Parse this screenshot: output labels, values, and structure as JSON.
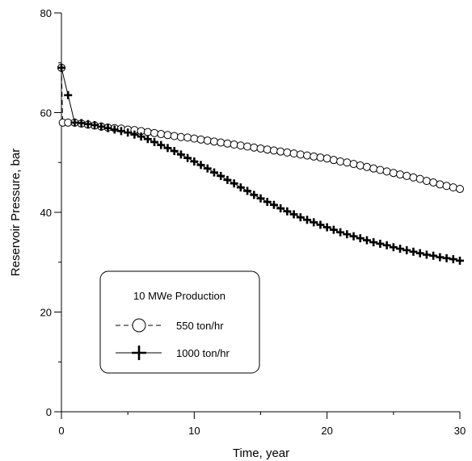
{
  "chart_data": {
    "type": "line",
    "title": "",
    "xlabel": "Time, year",
    "ylabel": "Reservoir Pressure, bar",
    "xlim": [
      0,
      30
    ],
    "ylim": [
      0,
      80
    ],
    "x_ticks": [
      "0",
      "10",
      "20",
      "30"
    ],
    "y_ticks": [
      "0",
      "20",
      "40",
      "60",
      "80"
    ],
    "grid": false,
    "legend": {
      "title": "10 MWe Production",
      "placement": "lower-left",
      "entries": [
        "550 ton/hr",
        "1000 ton/hr"
      ]
    },
    "series": [
      {
        "name": "550 ton/hr",
        "marker": "open-circle",
        "line_style": "dashed",
        "color": "#000000",
        "x": [
          0,
          0.1,
          0.5,
          1,
          1.5,
          2,
          2.5,
          3,
          3.5,
          4,
          4.5,
          5,
          5.5,
          6,
          6.5,
          7,
          7.5,
          8,
          8.5,
          9,
          9.5,
          10,
          10.5,
          11,
          11.5,
          12,
          12.5,
          13,
          13.5,
          14,
          14.5,
          15,
          15.5,
          16,
          16.5,
          17,
          17.5,
          18,
          18.5,
          19,
          19.5,
          20,
          20.5,
          21,
          21.5,
          22,
          22.5,
          23,
          23.5,
          24,
          24.5,
          25,
          25.5,
          26,
          26.5,
          27,
          27.5,
          28,
          28.5,
          29,
          29.5,
          30
        ],
        "y": [
          69.0,
          58.0,
          58.0,
          58.0,
          57.8,
          57.6,
          57.4,
          57.2,
          57.0,
          56.9,
          56.8,
          56.6,
          56.5,
          56.3,
          56.1,
          55.9,
          55.7,
          55.5,
          55.3,
          55.1,
          55.0,
          54.8,
          54.6,
          54.4,
          54.2,
          54.0,
          53.8,
          53.6,
          53.4,
          53.2,
          53.0,
          52.8,
          52.6,
          52.4,
          52.2,
          52.0,
          51.8,
          51.6,
          51.4,
          51.2,
          51.0,
          50.8,
          50.5,
          50.2,
          50.0,
          49.7,
          49.4,
          49.1,
          48.8,
          48.5,
          48.2,
          47.9,
          47.6,
          47.3,
          47.0,
          46.7,
          46.3,
          46.0,
          45.6,
          45.3,
          45.0,
          44.7
        ]
      },
      {
        "name": "1000 ton/hr",
        "marker": "plus",
        "line_style": "solid",
        "color": "#000000",
        "x": [
          0,
          0.5,
          1,
          1.5,
          2,
          2.5,
          3,
          3.5,
          4,
          4.5,
          5,
          5.5,
          6,
          6.5,
          7,
          7.5,
          8,
          8.5,
          9,
          9.5,
          10,
          10.5,
          11,
          11.5,
          12,
          12.5,
          13,
          13.5,
          14,
          14.5,
          15,
          15.5,
          16,
          16.5,
          17,
          17.5,
          18,
          18.5,
          19,
          19.5,
          20,
          20.5,
          21,
          21.5,
          22,
          22.5,
          23,
          23.5,
          24,
          24.5,
          25,
          25.5,
          26,
          26.5,
          27,
          27.5,
          28,
          28.5,
          29,
          29.5,
          30
        ],
        "y": [
          69.0,
          63.5,
          58.0,
          57.9,
          57.7,
          57.5,
          57.2,
          56.9,
          56.6,
          56.3,
          56.0,
          55.6,
          55.2,
          54.7,
          54.1,
          53.5,
          52.9,
          52.3,
          51.6,
          50.9,
          50.2,
          49.5,
          48.8,
          48.0,
          47.3,
          46.5,
          45.8,
          45.0,
          44.3,
          43.5,
          42.8,
          42.1,
          41.5,
          40.8,
          40.2,
          39.6,
          39.0,
          38.5,
          38.0,
          37.5,
          37.0,
          36.5,
          36.0,
          35.6,
          35.2,
          34.8,
          34.4,
          34.0,
          33.7,
          33.4,
          33.0,
          32.7,
          32.4,
          32.1,
          31.8,
          31.5,
          31.3,
          31.0,
          30.8,
          30.6,
          30.3
        ]
      }
    ]
  }
}
